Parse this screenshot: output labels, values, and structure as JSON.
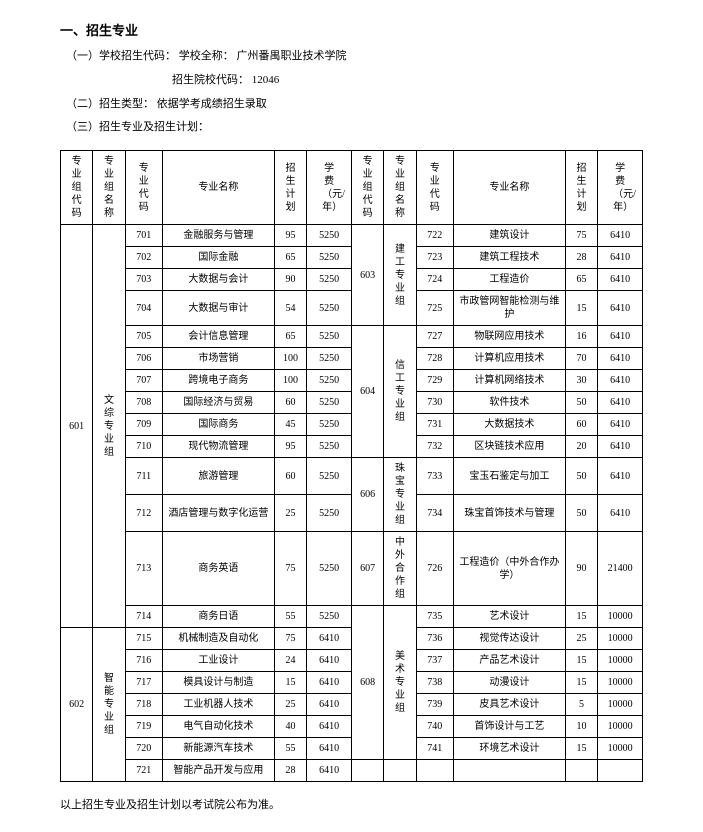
{
  "header": {
    "title": "一、招生专业",
    "line1_prefix": "（一）学校招生代码：",
    "line1_label": "学校全称：",
    "line1_value": "广州番禺职业技术学院",
    "code_label": "招生院校代码：",
    "code_value": "12046",
    "line2_prefix": "（二）招生类型：",
    "line2_value": "依据学考成绩招生录取",
    "line3": "（三）招生专业及招生计划："
  },
  "columns": {
    "c1": "专业组代码",
    "c2": "专业组名称",
    "c3": "专业代码",
    "c4": "专业名称",
    "c5": "招生计划",
    "c6": "学费（元/年）",
    "c7": "专业组代码",
    "c8": "专业组名称",
    "c9": "专业代码",
    "c10": "专业名称",
    "c11": "招生计划",
    "c12": "学费（元/年）"
  },
  "groups": {
    "g601": {
      "code": "601",
      "name": "文综专业组"
    },
    "g602": {
      "code": "602",
      "name": "智能专业组"
    },
    "g603": {
      "code": "603",
      "name": "建工专业组"
    },
    "g604": {
      "code": "604",
      "name": "信工专业组"
    },
    "g606": {
      "code": "606",
      "name": "珠宝专业组"
    },
    "g607": {
      "code": "607",
      "name": "中外合作组"
    },
    "g608": {
      "code": "608",
      "name": "美术专业组"
    }
  },
  "L": [
    {
      "code": "701",
      "major": "金融服务与管理",
      "plan": "95",
      "fee": "5250"
    },
    {
      "code": "702",
      "major": "国际金融",
      "plan": "65",
      "fee": "5250"
    },
    {
      "code": "703",
      "major": "大数据与会计",
      "plan": "90",
      "fee": "5250"
    },
    {
      "code": "704",
      "major": "大数据与审计",
      "plan": "54",
      "fee": "5250"
    },
    {
      "code": "705",
      "major": "会计信息管理",
      "plan": "65",
      "fee": "5250"
    },
    {
      "code": "706",
      "major": "市场营销",
      "plan": "100",
      "fee": "5250"
    },
    {
      "code": "707",
      "major": "跨境电子商务",
      "plan": "100",
      "fee": "5250"
    },
    {
      "code": "708",
      "major": "国际经济与贸易",
      "plan": "60",
      "fee": "5250"
    },
    {
      "code": "709",
      "major": "国际商务",
      "plan": "45",
      "fee": "5250"
    },
    {
      "code": "710",
      "major": "现代物流管理",
      "plan": "95",
      "fee": "5250"
    },
    {
      "code": "711",
      "major": "旅游管理",
      "plan": "60",
      "fee": "5250"
    },
    {
      "code": "712",
      "major": "酒店管理与数字化运营",
      "plan": "25",
      "fee": "5250"
    },
    {
      "code": "713",
      "major": "商务英语",
      "plan": "75",
      "fee": "5250"
    },
    {
      "code": "714",
      "major": "商务日语",
      "plan": "55",
      "fee": "5250"
    },
    {
      "code": "715",
      "major": "机械制造及自动化",
      "plan": "75",
      "fee": "6410"
    },
    {
      "code": "716",
      "major": "工业设计",
      "plan": "24",
      "fee": "6410"
    },
    {
      "code": "717",
      "major": "模具设计与制造",
      "plan": "15",
      "fee": "6410"
    },
    {
      "code": "718",
      "major": "工业机器人技术",
      "plan": "25",
      "fee": "6410"
    },
    {
      "code": "719",
      "major": "电气自动化技术",
      "plan": "40",
      "fee": "6410"
    },
    {
      "code": "720",
      "major": "新能源汽车技术",
      "plan": "55",
      "fee": "6410"
    },
    {
      "code": "721",
      "major": "智能产品开发与应用",
      "plan": "28",
      "fee": "6410"
    }
  ],
  "R": [
    {
      "code": "722",
      "major": "建筑设计",
      "plan": "75",
      "fee": "6410"
    },
    {
      "code": "723",
      "major": "建筑工程技术",
      "plan": "28",
      "fee": "6410"
    },
    {
      "code": "724",
      "major": "工程造价",
      "plan": "65",
      "fee": "6410"
    },
    {
      "code": "725",
      "major": "市政管网智能检测与维护",
      "plan": "15",
      "fee": "6410"
    },
    {
      "code": "727",
      "major": "物联网应用技术",
      "plan": "16",
      "fee": "6410"
    },
    {
      "code": "728",
      "major": "计算机应用技术",
      "plan": "70",
      "fee": "6410"
    },
    {
      "code": "729",
      "major": "计算机网络技术",
      "plan": "30",
      "fee": "6410"
    },
    {
      "code": "730",
      "major": "软件技术",
      "plan": "50",
      "fee": "6410"
    },
    {
      "code": "731",
      "major": "大数据技术",
      "plan": "60",
      "fee": "6410"
    },
    {
      "code": "732",
      "major": "区块链技术应用",
      "plan": "20",
      "fee": "6410"
    },
    {
      "code": "733",
      "major": "宝玉石鉴定与加工",
      "plan": "50",
      "fee": "6410"
    },
    {
      "code": "734",
      "major": "珠宝首饰技术与管理",
      "plan": "50",
      "fee": "6410"
    },
    {
      "code": "726",
      "major": "工程造价（中外合作办学）",
      "plan": "90",
      "fee": "21400"
    },
    {
      "code": "735",
      "major": "艺术设计",
      "plan": "15",
      "fee": "10000"
    },
    {
      "code": "736",
      "major": "视觉传达设计",
      "plan": "25",
      "fee": "10000"
    },
    {
      "code": "737",
      "major": "产品艺术设计",
      "plan": "15",
      "fee": "10000"
    },
    {
      "code": "738",
      "major": "动漫设计",
      "plan": "15",
      "fee": "10000"
    },
    {
      "code": "739",
      "major": "皮具艺术设计",
      "plan": "5",
      "fee": "10000"
    },
    {
      "code": "740",
      "major": "首饰设计与工艺",
      "plan": "10",
      "fee": "10000"
    },
    {
      "code": "741",
      "major": "环境艺术设计",
      "plan": "15",
      "fee": "10000"
    }
  ],
  "footer": "以上招生专业及招生计划以考试院公布为准。"
}
